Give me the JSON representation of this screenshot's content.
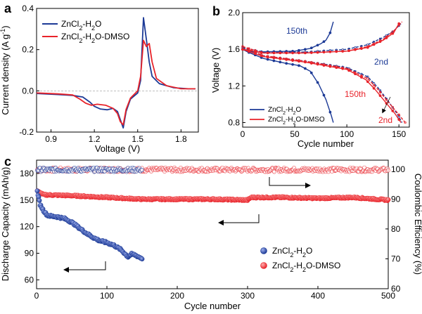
{
  "colors": {
    "water": "#1c3a96",
    "dmso": "#e8232a",
    "axis": "#000000"
  },
  "chart_data": [
    {
      "panel": "a",
      "type": "line",
      "xlabel": "Voltage (V)",
      "ylabel": "Current density (A g-1)",
      "xlim": [
        0.8,
        1.92
      ],
      "ylim": [
        -0.2,
        0.4
      ],
      "xticks": [
        "0.9",
        "1.2",
        "1.5",
        "1.8"
      ],
      "yticks": [
        "-0.2",
        "0.0",
        "0.2",
        "0.4"
      ],
      "legend": [
        "ZnCl2-H2O",
        "ZnCl2-H2O-DMSO"
      ],
      "legend_position": "top-left",
      "series": [
        {
          "name": "ZnCl2-H2O",
          "points": [
            [
              0.8,
              -0.013
            ],
            [
              0.95,
              -0.018
            ],
            [
              1.05,
              -0.022
            ],
            [
              1.12,
              -0.03
            ],
            [
              1.17,
              -0.055
            ],
            [
              1.2,
              -0.075
            ],
            [
              1.24,
              -0.088
            ],
            [
              1.29,
              -0.092
            ],
            [
              1.33,
              -0.085
            ],
            [
              1.36,
              -0.1
            ],
            [
              1.38,
              -0.14
            ],
            [
              1.4,
              -0.18
            ],
            [
              1.42,
              -0.1
            ],
            [
              1.45,
              -0.04
            ],
            [
              1.5,
              -0.01
            ],
            [
              1.52,
              0.05
            ],
            [
              1.53,
              0.2
            ],
            [
              1.54,
              0.355
            ],
            [
              1.56,
              0.25
            ],
            [
              1.58,
              0.14
            ],
            [
              1.6,
              0.07
            ],
            [
              1.65,
              0.035
            ],
            [
              1.75,
              0.015
            ],
            [
              1.85,
              0.01
            ],
            [
              1.9,
              0.01
            ]
          ]
        },
        {
          "name": "ZnCl2-H2O-DMSO",
          "points": [
            [
              0.8,
              -0.01
            ],
            [
              0.95,
              -0.015
            ],
            [
              1.05,
              -0.02
            ],
            [
              1.1,
              -0.04
            ],
            [
              1.14,
              -0.06
            ],
            [
              1.18,
              -0.07
            ],
            [
              1.22,
              -0.065
            ],
            [
              1.28,
              -0.07
            ],
            [
              1.33,
              -0.085
            ],
            [
              1.36,
              -0.11
            ],
            [
              1.38,
              -0.15
            ],
            [
              1.4,
              -0.165
            ],
            [
              1.42,
              -0.09
            ],
            [
              1.45,
              -0.035
            ],
            [
              1.5,
              0.0
            ],
            [
              1.52,
              0.07
            ],
            [
              1.54,
              0.245
            ],
            [
              1.56,
              0.215
            ],
            [
              1.58,
              0.23
            ],
            [
              1.6,
              0.14
            ],
            [
              1.63,
              0.06
            ],
            [
              1.7,
              0.025
            ],
            [
              1.8,
              0.01
            ],
            [
              1.9,
              0.01
            ]
          ]
        }
      ]
    },
    {
      "panel": "b",
      "type": "line",
      "xlabel": "Cycle number",
      "ylabel": "Voltage (V)",
      "xlim": [
        0,
        160
      ],
      "ylim": [
        0.75,
        2.0
      ],
      "xticks": [
        "0",
        "50",
        "100",
        "150"
      ],
      "yticks": [
        "0.8",
        "1.2",
        "1.6",
        "2.0"
      ],
      "legend": [
        "ZnCl2-H2O",
        "ZnCl2-H2O-DMSO"
      ],
      "legend_position": "bottom-left",
      "annotations": [
        "150th",
        "2nd",
        "150th",
        "2nd"
      ],
      "series": [
        {
          "name": "ZnCl2-H2O 150th charge",
          "points": [
            [
              0,
              1.6
            ],
            [
              10,
              1.57
            ],
            [
              30,
              1.575
            ],
            [
              50,
              1.58
            ],
            [
              65,
              1.61
            ],
            [
              75,
              1.66
            ],
            [
              80,
              1.7
            ],
            [
              84,
              1.78
            ],
            [
              87,
              1.9
            ]
          ]
        },
        {
          "name": "ZnCl2-H2O 150th discharge",
          "points": [
            [
              0,
              1.6
            ],
            [
              5,
              1.57
            ],
            [
              20,
              1.5
            ],
            [
              40,
              1.45
            ],
            [
              55,
              1.42
            ],
            [
              65,
              1.36
            ],
            [
              73,
              1.22
            ],
            [
              80,
              1.05
            ],
            [
              85,
              0.88
            ],
            [
              87,
              0.8
            ]
          ]
        },
        {
          "name": "ZnCl2-H2O 2nd charge",
          "points": [
            [
              0,
              1.62
            ],
            [
              20,
              1.57
            ],
            [
              60,
              1.57
            ],
            [
              100,
              1.6
            ],
            [
              120,
              1.65
            ],
            [
              135,
              1.73
            ],
            [
              145,
              1.8
            ],
            [
              152,
              1.88
            ]
          ]
        },
        {
          "name": "ZnCl2-H2O 2nd discharge",
          "points": [
            [
              0,
              1.62
            ],
            [
              20,
              1.53
            ],
            [
              60,
              1.47
            ],
            [
              100,
              1.4
            ],
            [
              120,
              1.3
            ],
            [
              130,
              1.18
            ],
            [
              140,
              1.03
            ],
            [
              148,
              0.9
            ],
            [
              153,
              0.8
            ]
          ]
        },
        {
          "name": "ZnCl2-H2O-DMSO 150th charge",
          "points": [
            [
              0,
              1.6
            ],
            [
              20,
              1.56
            ],
            [
              60,
              1.56
            ],
            [
              100,
              1.58
            ],
            [
              120,
              1.62
            ],
            [
              135,
              1.7
            ],
            [
              145,
              1.78
            ],
            [
              150,
              1.88
            ]
          ]
        },
        {
          "name": "ZnCl2-H2O-DMSO 150th discharge",
          "points": [
            [
              0,
              1.6
            ],
            [
              20,
              1.52
            ],
            [
              60,
              1.46
            ],
            [
              100,
              1.38
            ],
            [
              118,
              1.27
            ],
            [
              128,
              1.15
            ],
            [
              138,
              1.01
            ],
            [
              146,
              0.9
            ],
            [
              152,
              0.8
            ]
          ]
        },
        {
          "name": "ZnCl2-H2O-DMSO 2nd charge",
          "points": [
            [
              0,
              1.63
            ],
            [
              20,
              1.56
            ],
            [
              60,
              1.56
            ],
            [
              100,
              1.58
            ],
            [
              120,
              1.63
            ],
            [
              135,
              1.71
            ],
            [
              145,
              1.8
            ],
            [
              153,
              1.9
            ]
          ]
        },
        {
          "name": "ZnCl2-H2O-DMSO 2nd discharge",
          "points": [
            [
              0,
              1.63
            ],
            [
              20,
              1.53
            ],
            [
              60,
              1.47
            ],
            [
              100,
              1.39
            ],
            [
              120,
              1.28
            ],
            [
              130,
              1.16
            ],
            [
              140,
              1.02
            ],
            [
              149,
              0.9
            ],
            [
              156,
              0.8
            ]
          ]
        }
      ]
    },
    {
      "panel": "c",
      "type": "scatter",
      "xlabel": "Cycle number",
      "ylabel": "Discharge Capacity (mAh/g)",
      "y2label": "Coulombic Efficiency (%)",
      "xlim": [
        0,
        500
      ],
      "ylim": [
        50,
        195
      ],
      "y2lim": [
        60,
        103
      ],
      "xticks": [
        "0",
        "100",
        "200",
        "300",
        "400",
        "500"
      ],
      "yticks": [
        "60",
        "90",
        "120",
        "150",
        "180"
      ],
      "y2ticks": [
        "60",
        "70",
        "80",
        "90",
        "100"
      ],
      "legend": [
        "ZnCl2-H2O",
        "ZnCl2-H2O-DMSO"
      ],
      "legend_position": "bottom-right",
      "series": [
        {
          "name": "ZnCl2-H2O capacity",
          "n_cycles": 150,
          "points": [
            [
              1,
              160
            ],
            [
              5,
              145
            ],
            [
              10,
              138
            ],
            [
              15,
              133
            ],
            [
              20,
              132
            ],
            [
              30,
              131
            ],
            [
              40,
              129
            ],
            [
              50,
              125
            ],
            [
              60,
              119
            ],
            [
              70,
              113
            ],
            [
              80,
              108
            ],
            [
              90,
              104
            ],
            [
              100,
              102
            ],
            [
              110,
              99
            ],
            [
              120,
              94
            ],
            [
              125,
              90
            ],
            [
              130,
              86
            ],
            [
              135,
              89
            ],
            [
              140,
              88
            ],
            [
              150,
              84
            ]
          ]
        },
        {
          "name": "ZnCl2-H2O-DMSO capacity",
          "n_cycles": 500,
          "points": [
            [
              1,
              160
            ],
            [
              10,
              156
            ],
            [
              50,
              155
            ],
            [
              100,
              153
            ],
            [
              150,
              151
            ],
            [
              200,
              151
            ],
            [
              250,
              151
            ],
            [
              300,
              150
            ],
            [
              305,
              153
            ],
            [
              350,
              153
            ],
            [
              400,
              152
            ],
            [
              450,
              153
            ],
            [
              500,
              150
            ]
          ]
        },
        {
          "name": "ZnCl2-H2O efficiency",
          "n_cycles": 150,
          "mean": 99.8
        },
        {
          "name": "ZnCl2-H2O-DMSO efficiency",
          "n_cycles": 500,
          "mean": 99.8
        }
      ]
    }
  ]
}
